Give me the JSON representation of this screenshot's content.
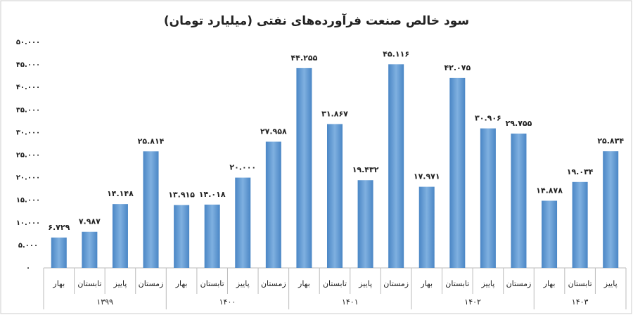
{
  "chart_data": {
    "type": "bar",
    "title": "سود خالص صنعت فرآورده‌های نفتی (میلیارد تومان)",
    "color": "#5b9bd5",
    "ylim": [
      0,
      50000
    ],
    "yticks": [
      {
        "value": 0,
        "label": "۰"
      },
      {
        "value": 5000,
        "label": "۵.۰۰۰"
      },
      {
        "value": 10000,
        "label": "۱۰.۰۰۰"
      },
      {
        "value": 15000,
        "label": "۱۵.۰۰۰"
      },
      {
        "value": 20000,
        "label": "۲۰.۰۰۰"
      },
      {
        "value": 25000,
        "label": "۲۵.۰۰۰"
      },
      {
        "value": 30000,
        "label": "۳۰.۰۰۰"
      },
      {
        "value": 35000,
        "label": "۳۵.۰۰۰"
      },
      {
        "value": 40000,
        "label": "۴۰.۰۰۰"
      },
      {
        "value": 45000,
        "label": "۴۵.۰۰۰"
      },
      {
        "value": 50000,
        "label": "۵۰.۰۰۰"
      }
    ],
    "groups": [
      {
        "name": "۱۳۹۹",
        "categories": [
          "بهار",
          "تابستان",
          "پاییز",
          "زمستان"
        ],
        "values": [
          6729,
          7987,
          14148,
          25814
        ],
        "value_labels": [
          "۶.۷۲۹",
          "۷.۹۸۷",
          "۱۴.۱۴۸",
          "۲۵.۸۱۴"
        ]
      },
      {
        "name": "۱۴۰۰",
        "categories": [
          "بهار",
          "تابستان",
          "پاییز",
          "زمستان"
        ],
        "values": [
          13915,
          14018,
          20000,
          27958
        ],
        "value_labels": [
          "۱۳.۹۱۵",
          "۱۴.۰۱۸",
          "۲۰.۰۰۰",
          "۲۷.۹۵۸"
        ]
      },
      {
        "name": "۱۴۰۱",
        "categories": [
          "بهار",
          "تابستان",
          "پاییز",
          "زمستان"
        ],
        "values": [
          44255,
          31867,
          19432,
          45116
        ],
        "value_labels": [
          "۴۴.۲۵۵",
          "۳۱.۸۶۷",
          "۱۹.۴۳۲",
          "۴۵.۱۱۶"
        ]
      },
      {
        "name": "۱۴۰۲",
        "categories": [
          "بهار",
          "تابستان",
          "پاییز",
          "زمستان"
        ],
        "values": [
          17971,
          42075,
          30906,
          29755
        ],
        "value_labels": [
          "۱۷.۹۷۱",
          "۴۲.۰۷۵",
          "۳۰.۹۰۶",
          "۲۹.۷۵۵"
        ]
      },
      {
        "name": "۱۴۰۳",
        "categories": [
          "بهار",
          "تابستان",
          "پاییز"
        ],
        "values": [
          14878,
          19034,
          25834
        ],
        "value_labels": [
          "۱۴.۸۷۸",
          "۱۹.۰۳۴",
          "۲۵.۸۳۴"
        ]
      }
    ]
  }
}
